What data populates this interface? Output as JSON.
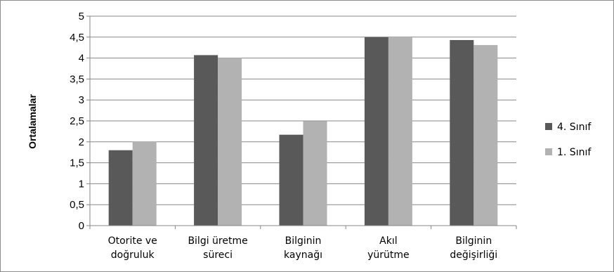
{
  "chart_data": {
    "type": "bar",
    "title": "",
    "xlabel": "",
    "ylabel": "Ortalamalar",
    "ylim": [
      0,
      5
    ],
    "ytick_step": 0.5,
    "ytick_labels": [
      "0",
      "0,5",
      "1",
      "1,5",
      "2",
      "2,5",
      "3",
      "3,5",
      "4",
      "4,5",
      "5"
    ],
    "grid": true,
    "legend_position": "right",
    "categories": [
      [
        "Otorite ve",
        "doğruluk"
      ],
      [
        "Bilgi üretme",
        "süreci"
      ],
      [
        "Bilginin",
        "kaynağı"
      ],
      [
        "Akıl",
        "yürütme"
      ],
      [
        "Bilginin",
        "değişirliği"
      ]
    ],
    "series": [
      {
        "name": "4. Sınıf",
        "color": "#595959",
        "values": [
          1.8,
          4.07,
          2.17,
          4.5,
          4.43
        ]
      },
      {
        "name": "1. Sınıf",
        "color": "#b2b2b2",
        "values": [
          2.01,
          4.0,
          2.49,
          4.49,
          4.31
        ]
      }
    ]
  }
}
